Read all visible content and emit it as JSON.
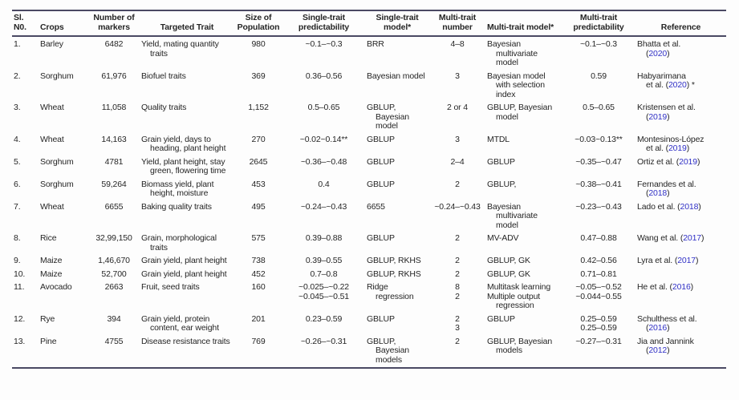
{
  "colors": {
    "rule": "#4a4963",
    "link": "#3131c6",
    "text": "#262626"
  },
  "table": {
    "columns": [
      {
        "id": "sl",
        "label": "Sl.\nN0.",
        "align": "left",
        "header_align": "left"
      },
      {
        "id": "crops",
        "label": "Crops",
        "align": "left",
        "header_align": "left"
      },
      {
        "id": "markers",
        "label": "Number of\nmarkers",
        "align": "center",
        "header_align": "center"
      },
      {
        "id": "trait",
        "label": "Targeted Trait",
        "align": "left",
        "header_align": "center",
        "hang": true
      },
      {
        "id": "population",
        "label": "Size of\nPopulation",
        "align": "center",
        "header_align": "center"
      },
      {
        "id": "st_pred",
        "label": "Single-trait\npredictability",
        "align": "center",
        "header_align": "center"
      },
      {
        "id": "st_model",
        "label": "Single-trait\nmodel*",
        "align": "left",
        "header_align": "center",
        "hang": true
      },
      {
        "id": "mt_num",
        "label": "Multi-trait\nnumber",
        "align": "center",
        "header_align": "center"
      },
      {
        "id": "mt_model",
        "label": "Multi-trait model*",
        "align": "left",
        "header_align": "left",
        "hang": true
      },
      {
        "id": "mt_pred",
        "label": "Multi-trait\npredictability",
        "align": "center",
        "header_align": "center"
      },
      {
        "id": "reference",
        "label": "Reference",
        "align": "left",
        "header_align": "center",
        "hang": true,
        "cont_indent": true,
        "year_link": true
      }
    ],
    "rows": [
      {
        "sl": "1.",
        "crops": "Barley",
        "markers": "6482",
        "trait": "Yield, mating quantity traits",
        "population": "980",
        "st_pred": "~0.1–~0.3",
        "st_model": "BRR",
        "mt_num": "4–8",
        "mt_model": "Bayesian multivariate model",
        "mt_pred": "~0.1–~0.3",
        "reference": "Bhatta et al.\n(2020)"
      },
      {
        "sl": "2.",
        "crops": "Sorghum",
        "markers": "61,976",
        "trait": "Biofuel traits",
        "population": "369",
        "st_pred": "0.36–0.56",
        "st_model": "Bayesian model",
        "mt_num": "3",
        "mt_model": "Bayesian model with selection index",
        "mt_pred": "0.59",
        "reference": "Habyarimana\net al. (2020) *"
      },
      {
        "sl": "3.",
        "crops": "Wheat",
        "markers": "11,058",
        "trait": "Quality traits",
        "population": "1,152",
        "st_pred": "0.5–0.65",
        "st_model": "GBLUP, Bayesian model",
        "mt_num": "2 or 4",
        "mt_model": "GBLUP, Bayesian model",
        "mt_pred": "0.5–0.65",
        "reference": "Kristensen et al.\n(2019)"
      },
      {
        "sl": "4.",
        "crops": "Wheat",
        "markers": "14,163",
        "trait": "Grain yield, days to heading, plant height",
        "population": "270",
        "st_pred": "~0.02~0.14**",
        "st_model": "GBLUP",
        "mt_num": "3",
        "mt_model": "MTDL",
        "mt_pred": "~0.03~0.13**",
        "reference": "Montesinos-López\net al. (2019)"
      },
      {
        "sl": "5.",
        "crops": "Sorghum",
        "markers": "4781",
        "trait": "Yield, plant height, stay green, flowering time",
        "population": "2645",
        "st_pred": "~0.36–~0.48",
        "st_model": "GBLUP",
        "mt_num": "2–4",
        "mt_model": "GBLUP",
        "mt_pred": "~0.35–~0.47",
        "reference": "Ortiz et al. (2019)"
      },
      {
        "sl": "6.",
        "crops": "Sorghum",
        "markers": "59,264",
        "trait": "Biomass yield, plant height, moisture",
        "population": "453",
        "st_pred": "0.4",
        "st_model": "GBLUP",
        "mt_num": "2",
        "mt_model": "GBLUP,",
        "mt_pred": "~0.38–~0.41",
        "reference": "Fernandes et al.\n(2018)"
      },
      {
        "sl": "7.",
        "crops": "Wheat",
        "markers": "6655",
        "trait": "Baking quality traits",
        "population": "495",
        "st_pred": "~0.24–~0.43",
        "st_model": "6655",
        "mt_num": "~0.24–~0.43",
        "mt_model": "Bayesian multivariate model",
        "mt_pred": "~0.23–~0.43",
        "reference": "Lado et al. (2018)"
      },
      {
        "sl": "8.",
        "crops": "Rice",
        "markers": "32,99,150",
        "trait": "Grain, morphological traits",
        "population": "575",
        "st_pred": "0.39–0.88",
        "st_model": "GBLUP",
        "mt_num": "2",
        "mt_model": "MV-ADV",
        "mt_pred": "0.47–0.88",
        "reference": "Wang et al. (2017)"
      },
      {
        "sl": "9.",
        "crops": "Maize",
        "markers": "1,46,670",
        "trait": "Grain yield, plant height",
        "population": "738",
        "st_pred": "0.39–0.55",
        "st_model": "GBLUP, RKHS",
        "mt_num": "2",
        "mt_model": "GBLUP, GK",
        "mt_pred": "0.42–0.56",
        "reference": "Lyra et al. (2017)"
      },
      {
        "sl": "10.",
        "crops": "Maize",
        "markers": "52,700",
        "trait": "Grain yield, plant height",
        "population": "452",
        "st_pred": "0.7–0.8",
        "st_model": "GBLUP, RKHS",
        "mt_num": "2",
        "mt_model": "GBLUP, GK",
        "mt_pred": "0.71–0.81",
        "reference": ""
      },
      {
        "sl": "11.",
        "crops": "Avocado",
        "markers": "2663",
        "trait": "Fruit, seed traits",
        "population": "160",
        "st_pred": "~0.025–~0.22\n~0.045–~0.51",
        "st_model": "Ridge regression",
        "mt_num": "8\n2",
        "mt_model": "Multitask learning\nMultiple output regression",
        "mt_pred": "~0.05–~0.52\n~0.044~0.55",
        "reference": "He et al. (2016)"
      },
      {
        "sl": "12.",
        "crops": "Rye",
        "markers": "394",
        "trait": "Grain yield, protein content, ear weight",
        "population": "201",
        "st_pred": "0.23–0.59",
        "st_model": "GBLUP",
        "mt_num": "2\n3",
        "mt_model": "GBLUP",
        "mt_pred": "0.25–0.59\n0.25–0.59",
        "reference": "Schulthess et al.\n(2016)"
      },
      {
        "sl": "13.",
        "crops": "Pine",
        "markers": "4755",
        "trait": "Disease resistance traits",
        "population": "769",
        "st_pred": "~0.26–~0.31",
        "st_model": "GBLUP, Bayesian models",
        "mt_num": "2",
        "mt_model": "GBLUP, Bayesian models",
        "mt_pred": "~0.27–~0.31",
        "reference": "Jia and Jannink\n(2012)"
      }
    ]
  }
}
